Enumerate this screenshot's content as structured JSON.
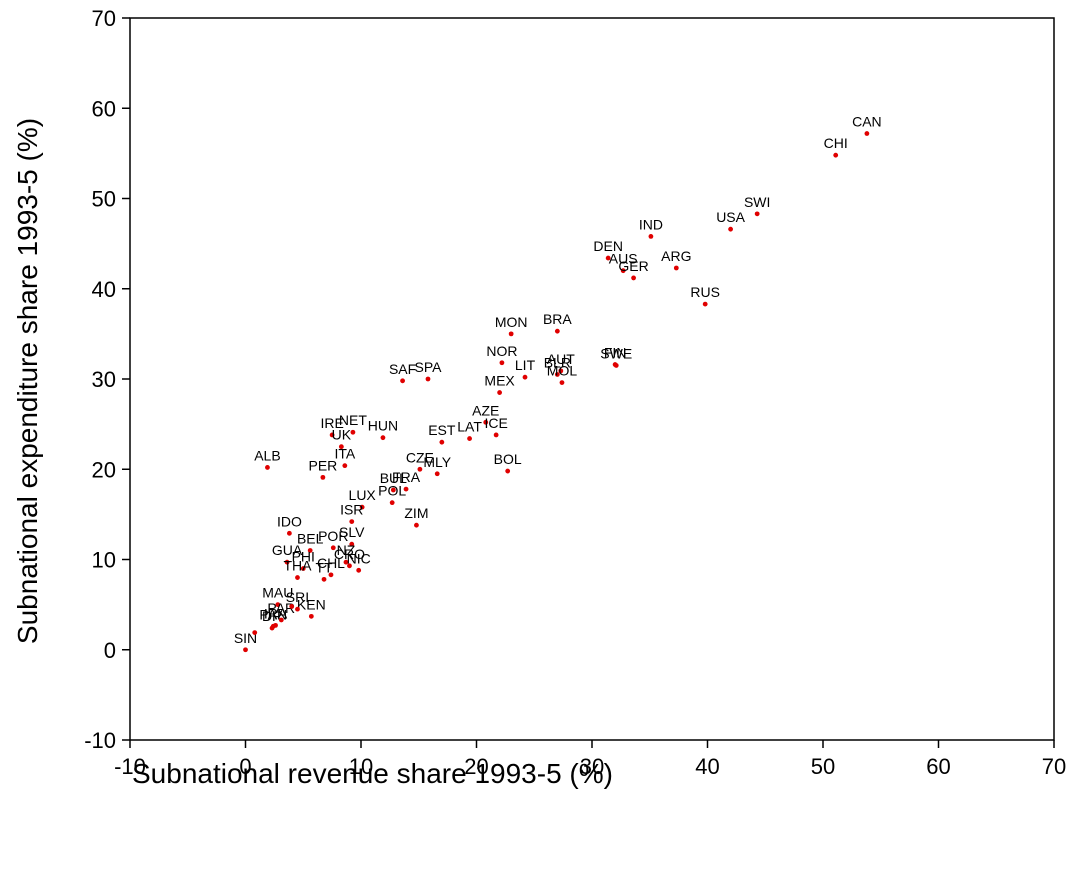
{
  "chart_data": {
    "type": "scatter",
    "title": "",
    "xlabel": "Subnational revenue share 1993-5 (%)",
    "ylabel": "Subnational expenditure share 1993-5 (%)",
    "xlim": [
      -10,
      70
    ],
    "ylim": [
      -10,
      70
    ],
    "xticks": [
      "-10",
      "0",
      "10",
      "20",
      "30",
      "40",
      "50",
      "60",
      "70"
    ],
    "yticks": [
      "-10",
      "0",
      "10",
      "20",
      "30",
      "40",
      "50",
      "60",
      "70"
    ],
    "grid": false,
    "legend": "none",
    "marker_color": "#e00000",
    "points": [
      {
        "label": "CAN",
        "x": 53.8,
        "y": 57.2
      },
      {
        "label": "CHI",
        "x": 51.1,
        "y": 54.8
      },
      {
        "label": "SWI",
        "x": 44.3,
        "y": 48.3
      },
      {
        "label": "USA",
        "x": 42.0,
        "y": 46.6
      },
      {
        "label": "IND",
        "x": 35.1,
        "y": 45.8
      },
      {
        "label": "DEN",
        "x": 31.4,
        "y": 43.4
      },
      {
        "label": "AUS",
        "x": 32.7,
        "y": 42.0
      },
      {
        "label": "GER",
        "x": 33.6,
        "y": 41.2
      },
      {
        "label": "ARG",
        "x": 37.3,
        "y": 42.3
      },
      {
        "label": "RUS",
        "x": 39.8,
        "y": 38.3
      },
      {
        "label": "BRA",
        "x": 27.0,
        "y": 35.3
      },
      {
        "label": "MON",
        "x": 23.0,
        "y": 35.0
      },
      {
        "label": "FIN",
        "x": 32.0,
        "y": 31.6
      },
      {
        "label": "SWE",
        "x": 32.1,
        "y": 31.5
      },
      {
        "label": "NOR",
        "x": 22.2,
        "y": 31.8
      },
      {
        "label": "AUT",
        "x": 27.3,
        "y": 30.9
      },
      {
        "label": "BLR",
        "x": 27.0,
        "y": 30.5
      },
      {
        "label": "MOL",
        "x": 27.4,
        "y": 29.6
      },
      {
        "label": "LIT",
        "x": 24.2,
        "y": 30.2
      },
      {
        "label": "MEX",
        "x": 22.0,
        "y": 28.5
      },
      {
        "label": "SAF",
        "x": 13.6,
        "y": 29.8
      },
      {
        "label": "SPA",
        "x": 15.8,
        "y": 30.0
      },
      {
        "label": "AZE",
        "x": 20.8,
        "y": 25.2
      },
      {
        "label": "ICE",
        "x": 21.7,
        "y": 23.8
      },
      {
        "label": "LAT",
        "x": 19.4,
        "y": 23.4
      },
      {
        "label": "EST",
        "x": 17.0,
        "y": 23.0
      },
      {
        "label": "IRE",
        "x": 7.5,
        "y": 23.8
      },
      {
        "label": "NET",
        "x": 9.3,
        "y": 24.1
      },
      {
        "label": "HUN",
        "x": 11.9,
        "y": 23.5
      },
      {
        "label": "UK",
        "x": 8.3,
        "y": 22.5
      },
      {
        "label": "ITA",
        "x": 8.6,
        "y": 20.4
      },
      {
        "label": "ALB",
        "x": 1.9,
        "y": 20.2
      },
      {
        "label": "PER",
        "x": 6.7,
        "y": 19.1
      },
      {
        "label": "CZE",
        "x": 15.1,
        "y": 20.0
      },
      {
        "label": "MLY",
        "x": 16.6,
        "y": 19.5
      },
      {
        "label": "BOL",
        "x": 22.7,
        "y": 19.8
      },
      {
        "label": "BUL",
        "x": 12.8,
        "y": 17.7
      },
      {
        "label": "FRA",
        "x": 13.9,
        "y": 17.8
      },
      {
        "label": "LUX",
        "x": 10.1,
        "y": 15.8
      },
      {
        "label": "POL",
        "x": 12.7,
        "y": 16.3
      },
      {
        "label": "ISR",
        "x": 9.2,
        "y": 14.2
      },
      {
        "label": "ZIM",
        "x": 14.8,
        "y": 13.8
      },
      {
        "label": "IDO",
        "x": 3.8,
        "y": 12.9
      },
      {
        "label": "BEL",
        "x": 5.6,
        "y": 11.0
      },
      {
        "label": "POR",
        "x": 7.6,
        "y": 11.3
      },
      {
        "label": "SLV",
        "x": 9.2,
        "y": 11.7
      },
      {
        "label": "GUA",
        "x": 3.6,
        "y": 9.7
      },
      {
        "label": "NZ",
        "x": 8.7,
        "y": 9.7
      },
      {
        "label": "CRO",
        "x": 9.0,
        "y": 9.3
      },
      {
        "label": "NIC",
        "x": 9.8,
        "y": 8.8
      },
      {
        "label": "PHI",
        "x": 5.0,
        "y": 9.0
      },
      {
        "label": "CHL",
        "x": 7.4,
        "y": 8.3
      },
      {
        "label": "THA",
        "x": 4.5,
        "y": 8.0
      },
      {
        "label": "MAU",
        "x": 2.8,
        "y": 5.0
      },
      {
        "label": "TT",
        "x": 6.8,
        "y": 7.8
      },
      {
        "label": "KEN",
        "x": 5.7,
        "y": 3.7
      },
      {
        "label": "SRI",
        "x": 4.5,
        "y": 4.5
      },
      {
        "label": "PAN",
        "x": 2.4,
        "y": 2.6
      },
      {
        "label": "DR",
        "x": 2.3,
        "y": 2.4
      },
      {
        "label": "IRA",
        "x": 2.6,
        "y": 2.7
      },
      {
        "label": "PAR",
        "x": 3.1,
        "y": 3.3
      },
      {
        "label": "SIN",
        "x": 0.0,
        "y": 0.0
      },
      {
        "label": "",
        "x": 0.8,
        "y": 1.9
      },
      {
        "label": "",
        "x": 4.0,
        "y": 4.8
      }
    ]
  }
}
